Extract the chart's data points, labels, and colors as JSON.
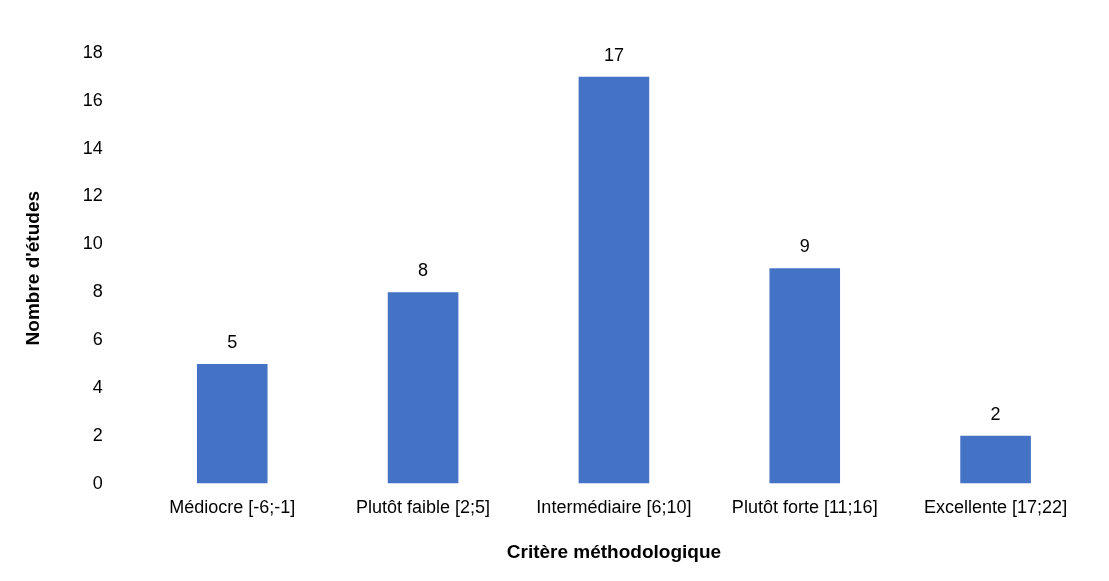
{
  "chart_data": {
    "type": "bar",
    "xlabel": "Critère méthodologique",
    "ylabel": "Nombre d'études",
    "categories": [
      "Médiocre [-6;-1]",
      "Plutôt faible [2;5]",
      "Intermédiaire [6;10]",
      "Plutôt forte [11;16]",
      "Excellente [17;22]"
    ],
    "values": [
      5,
      8,
      17,
      9,
      2
    ],
    "color": "#4472c4",
    "ylim": [
      0,
      18
    ],
    "yticks": [
      0,
      2,
      4,
      6,
      8,
      10,
      12,
      14,
      16,
      18
    ],
    "grid": false,
    "data_labels": true
  }
}
